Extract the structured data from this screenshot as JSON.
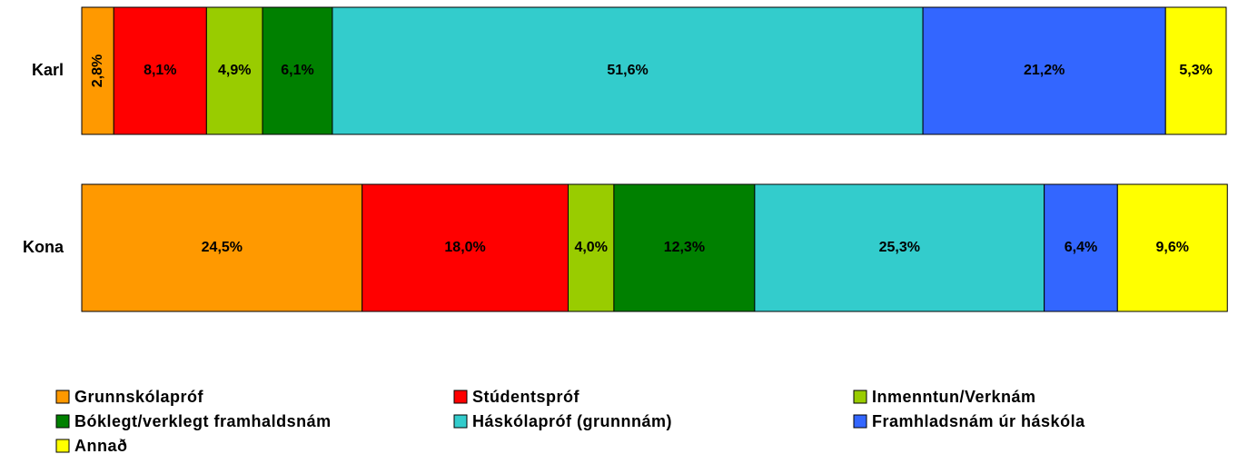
{
  "chart_data": {
    "type": "stacked-bar-horizontal",
    "categories": [
      "Karl",
      "Kona"
    ],
    "xlim": [
      0,
      100
    ],
    "series": [
      {
        "name": "Grunnskólapróf",
        "color": "#ff9900",
        "values": [
          2.8,
          24.5
        ],
        "value_labels": [
          "2,8%",
          "24,5%"
        ]
      },
      {
        "name": "Stúdentspróf",
        "color": "#ff0000",
        "values": [
          8.1,
          18.0
        ],
        "value_labels": [
          "8,1%",
          "18,0%"
        ]
      },
      {
        "name": "Inmenntun/Verknám",
        "color": "#99cc00",
        "values": [
          4.9,
          4.0
        ],
        "value_labels": [
          "4,9%",
          "4,0%"
        ]
      },
      {
        "name": "Bóklegt/verklegt framhaldsnám",
        "color": "#008000",
        "values": [
          6.1,
          12.3
        ],
        "value_labels": [
          "6,1%",
          "12,3%"
        ]
      },
      {
        "name": "Háskólapróf (grunnnám)",
        "color": "#33cccc",
        "values": [
          51.6,
          25.3
        ],
        "value_labels": [
          "51,6%",
          "25,3%"
        ]
      },
      {
        "name": "Framhladsnám úr háskóla",
        "color": "#3366ff",
        "values": [
          21.2,
          6.4
        ],
        "value_labels": [
          "21,2%",
          "6,4%"
        ]
      },
      {
        "name": "Annað",
        "color": "#ffff00",
        "values": [
          5.3,
          9.6
        ],
        "value_labels": [
          "5,3%",
          "9,6%"
        ]
      }
    ],
    "legend": "bottom"
  }
}
